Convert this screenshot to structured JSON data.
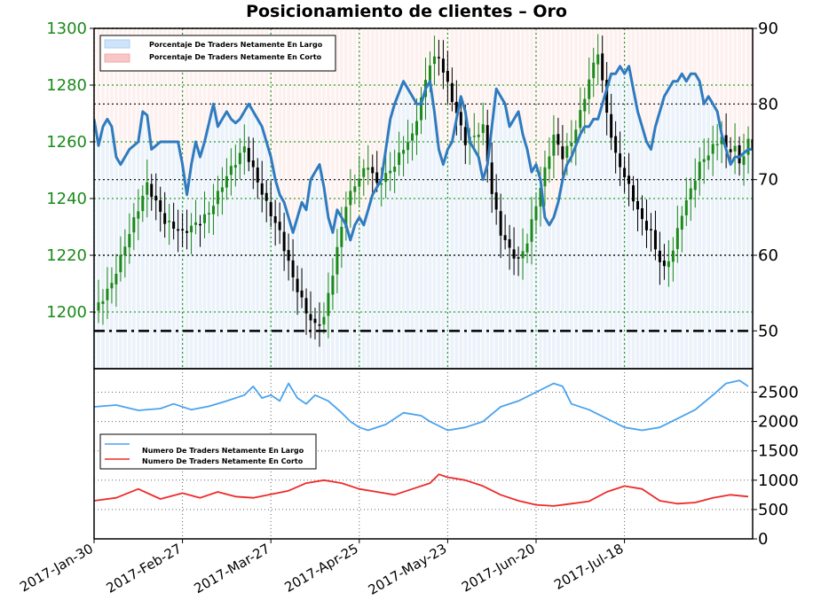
{
  "title": "Posicionamiento de clientes – Oro",
  "chart_data": [
    {
      "type": "candlestick+line",
      "title": "Posicionamiento de clientes – Oro",
      "left_axis": {
        "ylim": [
          1180,
          1300
        ],
        "ticks": [
          1200,
          1220,
          1240,
          1260,
          1280,
          1300
        ],
        "color": "#1a8a1a"
      },
      "right_axis": {
        "ylim": [
          45,
          90
        ],
        "ticks": [
          50,
          60,
          70,
          80,
          90
        ]
      },
      "reference_line": {
        "axis": "right",
        "value": 50,
        "style": "dash-dot"
      },
      "legend": [
        "Porcentaje De Traders Netamente En Largo",
        "Porcentaje De Traders Netamente En Corto"
      ],
      "legend_position": "top-left",
      "price_path": [
        [
          0,
          1200
        ],
        [
          4,
          1210
        ],
        [
          8,
          1228
        ],
        [
          12,
          1245
        ],
        [
          16,
          1232
        ],
        [
          20,
          1228
        ],
        [
          24,
          1232
        ],
        [
          26,
          1235
        ],
        [
          30,
          1248
        ],
        [
          34,
          1258
        ],
        [
          36,
          1250
        ],
        [
          39,
          1238
        ],
        [
          42,
          1228
        ],
        [
          45,
          1212
        ],
        [
          48,
          1200
        ],
        [
          50,
          1195
        ],
        [
          52,
          1198
        ],
        [
          55,
          1222
        ],
        [
          57,
          1238
        ],
        [
          59,
          1245
        ],
        [
          62,
          1252
        ],
        [
          64,
          1245
        ],
        [
          66,
          1248
        ],
        [
          68,
          1252
        ],
        [
          70,
          1258
        ],
        [
          72,
          1262
        ],
        [
          74,
          1275
        ],
        [
          76,
          1288
        ],
        [
          78,
          1290
        ],
        [
          80,
          1280
        ],
        [
          82,
          1270
        ],
        [
          84,
          1260
        ],
        [
          86,
          1262
        ],
        [
          88,
          1265
        ],
        [
          90,
          1242
        ],
        [
          92,
          1228
        ],
        [
          94,
          1222
        ],
        [
          96,
          1218
        ],
        [
          98,
          1225
        ],
        [
          100,
          1238
        ],
        [
          102,
          1250
        ],
        [
          104,
          1262
        ],
        [
          106,
          1255
        ],
        [
          108,
          1260
        ],
        [
          110,
          1270
        ],
        [
          112,
          1282
        ],
        [
          114,
          1292
        ],
        [
          116,
          1270
        ],
        [
          118,
          1255
        ],
        [
          120,
          1248
        ],
        [
          122,
          1240
        ],
        [
          124,
          1232
        ],
        [
          126,
          1228
        ],
        [
          127,
          1222
        ],
        [
          129,
          1215
        ],
        [
          131,
          1222
        ],
        [
          133,
          1235
        ],
        [
          135,
          1243
        ],
        [
          137,
          1252
        ],
        [
          140,
          1258
        ],
        [
          142,
          1262
        ],
        [
          143,
          1257
        ],
        [
          145,
          1258
        ],
        [
          146,
          1252
        ],
        [
          148,
          1260
        ],
        [
          149,
          1258
        ]
      ],
      "percent_long_path": [
        [
          0,
          78
        ],
        [
          1,
          74.5
        ],
        [
          2,
          77
        ],
        [
          3,
          78
        ],
        [
          4,
          77
        ],
        [
          5,
          73
        ],
        [
          6,
          72
        ],
        [
          8,
          74
        ],
        [
          10,
          75
        ],
        [
          11,
          79
        ],
        [
          12,
          78.5
        ],
        [
          13,
          74
        ],
        [
          14,
          74.5
        ],
        [
          15,
          75
        ],
        [
          17,
          75
        ],
        [
          19,
          75
        ],
        [
          20,
          72
        ],
        [
          21,
          68
        ],
        [
          22,
          72
        ],
        [
          23,
          75
        ],
        [
          24,
          73
        ],
        [
          25,
          75
        ],
        [
          26,
          77.5
        ],
        [
          27,
          80
        ],
        [
          28,
          77
        ],
        [
          29,
          78
        ],
        [
          30,
          79
        ],
        [
          31,
          78
        ],
        [
          32,
          77.5
        ],
        [
          33,
          78
        ],
        [
          35,
          80
        ],
        [
          36,
          79
        ],
        [
          38,
          77
        ],
        [
          39,
          75
        ],
        [
          40,
          73
        ],
        [
          41,
          70
        ],
        [
          42,
          68
        ],
        [
          43,
          67
        ],
        [
          44,
          65
        ],
        [
          45,
          63
        ],
        [
          46,
          65
        ],
        [
          47,
          67
        ],
        [
          48,
          66
        ],
        [
          49,
          70
        ],
        [
          50,
          71
        ],
        [
          51,
          72
        ],
        [
          52,
          69
        ],
        [
          53,
          65
        ],
        [
          54,
          63
        ],
        [
          55,
          66
        ],
        [
          56,
          65
        ],
        [
          57,
          64
        ],
        [
          58,
          62
        ],
        [
          59,
          64
        ],
        [
          60,
          65
        ],
        [
          61,
          64
        ],
        [
          62,
          66
        ],
        [
          63,
          68
        ],
        [
          64,
          69
        ],
        [
          65,
          70
        ],
        [
          67,
          78
        ],
        [
          68,
          80
        ],
        [
          70,
          83
        ],
        [
          71,
          82
        ],
        [
          72,
          81
        ],
        [
          73,
          80
        ],
        [
          74,
          80
        ],
        [
          75,
          82
        ],
        [
          76,
          83
        ],
        [
          77,
          79
        ],
        [
          78,
          74
        ],
        [
          79,
          72
        ],
        [
          80,
          74
        ],
        [
          81,
          75
        ],
        [
          82,
          78
        ],
        [
          83,
          81
        ],
        [
          84,
          79
        ],
        [
          85,
          75
        ],
        [
          86,
          74
        ],
        [
          87,
          73
        ],
        [
          88,
          70
        ],
        [
          89,
          72
        ],
        [
          90,
          77
        ],
        [
          91,
          82
        ],
        [
          92,
          81
        ],
        [
          93,
          80
        ],
        [
          94,
          77
        ],
        [
          95,
          78
        ],
        [
          96,
          79
        ],
        [
          97,
          76
        ],
        [
          98,
          74
        ],
        [
          99,
          71
        ],
        [
          100,
          72
        ],
        [
          101,
          70
        ],
        [
          102,
          65
        ],
        [
          103,
          64
        ],
        [
          104,
          65
        ],
        [
          105,
          67
        ],
        [
          106,
          70
        ],
        [
          107,
          72
        ],
        [
          108,
          73
        ],
        [
          110,
          76
        ],
        [
          111,
          77
        ],
        [
          112,
          77
        ],
        [
          113,
          78
        ],
        [
          114,
          78
        ],
        [
          115,
          80
        ],
        [
          116,
          82
        ],
        [
          117,
          84
        ],
        [
          118,
          84
        ],
        [
          119,
          85
        ],
        [
          120,
          84
        ],
        [
          121,
          85
        ],
        [
          122,
          82
        ],
        [
          123,
          79
        ],
        [
          124,
          77
        ],
        [
          125,
          75
        ],
        [
          126,
          74
        ],
        [
          127,
          77
        ],
        [
          128,
          79
        ],
        [
          129,
          81
        ],
        [
          130,
          82
        ],
        [
          131,
          83
        ],
        [
          132,
          83
        ],
        [
          133,
          84
        ],
        [
          134,
          83
        ],
        [
          135,
          84
        ],
        [
          136,
          84
        ],
        [
          137,
          83
        ],
        [
          138,
          80
        ],
        [
          139,
          81
        ],
        [
          140,
          80
        ],
        [
          141,
          79
        ],
        [
          142,
          76
        ],
        [
          143,
          74
        ],
        [
          144,
          72
        ],
        [
          145,
          73
        ],
        [
          146,
          73
        ],
        [
          147,
          73.5
        ],
        [
          148,
          74
        ],
        [
          149,
          74
        ]
      ]
    },
    {
      "type": "line",
      "x_tick_labels": [
        "2017-Jan-30",
        "2017-Feb-27",
        "2017-Mar-27",
        "2017-Apr-25",
        "2017-May-23",
        "2017-Jun-20",
        "2017-Jul-18"
      ],
      "ylim": [
        0,
        2900
      ],
      "y_ticks": [
        0,
        500,
        1000,
        1500,
        2000,
        2500
      ],
      "legend_position": "center-left",
      "series": [
        {
          "name": "Numero De Traders Netamente En Largo",
          "color": "#4aa3ee",
          "values": [
            [
              0,
              2250
            ],
            [
              5,
              2280
            ],
            [
              10,
              2190
            ],
            [
              15,
              2220
            ],
            [
              18,
              2300
            ],
            [
              22,
              2200
            ],
            [
              26,
              2260
            ],
            [
              30,
              2350
            ],
            [
              34,
              2450
            ],
            [
              36,
              2600
            ],
            [
              38,
              2400
            ],
            [
              40,
              2450
            ],
            [
              42,
              2350
            ],
            [
              44,
              2650
            ],
            [
              46,
              2400
            ],
            [
              48,
              2300
            ],
            [
              50,
              2450
            ],
            [
              53,
              2350
            ],
            [
              56,
              2150
            ],
            [
              58,
              2000
            ],
            [
              60,
              1900
            ],
            [
              62,
              1850
            ],
            [
              66,
              1950
            ],
            [
              70,
              2150
            ],
            [
              74,
              2100
            ],
            [
              76,
              2000
            ],
            [
              80,
              1850
            ],
            [
              84,
              1900
            ],
            [
              88,
              2000
            ],
            [
              92,
              2250
            ],
            [
              96,
              2350
            ],
            [
              100,
              2500
            ],
            [
              104,
              2650
            ],
            [
              106,
              2600
            ],
            [
              108,
              2300
            ],
            [
              112,
              2200
            ],
            [
              116,
              2050
            ],
            [
              120,
              1900
            ],
            [
              124,
              1850
            ],
            [
              128,
              1900
            ],
            [
              132,
              2050
            ],
            [
              136,
              2200
            ],
            [
              140,
              2450
            ],
            [
              143,
              2650
            ],
            [
              146,
              2700
            ],
            [
              148,
              2600
            ]
          ]
        },
        {
          "name": "Numero De Traders Netamente En Corto",
          "color": "#ee2a2a",
          "values": [
            [
              0,
              650
            ],
            [
              5,
              700
            ],
            [
              10,
              850
            ],
            [
              15,
              680
            ],
            [
              20,
              780
            ],
            [
              24,
              700
            ],
            [
              28,
              800
            ],
            [
              32,
              720
            ],
            [
              36,
              700
            ],
            [
              40,
              760
            ],
            [
              44,
              820
            ],
            [
              48,
              950
            ],
            [
              52,
              1000
            ],
            [
              56,
              950
            ],
            [
              60,
              850
            ],
            [
              64,
              800
            ],
            [
              68,
              750
            ],
            [
              72,
              850
            ],
            [
              76,
              950
            ],
            [
              78,
              1100
            ],
            [
              80,
              1050
            ],
            [
              84,
              1000
            ],
            [
              88,
              900
            ],
            [
              92,
              750
            ],
            [
              96,
              650
            ],
            [
              100,
              580
            ],
            [
              104,
              560
            ],
            [
              108,
              600
            ],
            [
              112,
              640
            ],
            [
              116,
              800
            ],
            [
              120,
              900
            ],
            [
              124,
              850
            ],
            [
              128,
              650
            ],
            [
              132,
              600
            ],
            [
              136,
              620
            ],
            [
              140,
              700
            ],
            [
              144,
              750
            ],
            [
              148,
              720
            ]
          ]
        }
      ]
    }
  ],
  "legend_top": [
    {
      "label": "Porcentaje De Traders Netamente En Largo",
      "color": "#a8d0f5"
    },
    {
      "label": "Porcentaje De Traders Netamente En Corto",
      "color": "#f5a8a8"
    }
  ],
  "legend_bottom": [
    {
      "label": "Numero De Traders Netamente En Largo",
      "color": "#4aa3ee"
    },
    {
      "label": "Numero De Traders Netamente En Corto",
      "color": "#ee2a2a"
    }
  ]
}
